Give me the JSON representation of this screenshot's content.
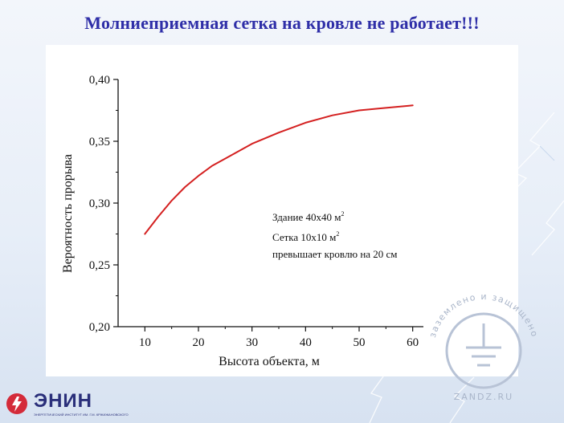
{
  "slide": {
    "title": "Молниеприемная сетка на кровле не работает!!!"
  },
  "chart_data": {
    "type": "line",
    "xlabel": "Высота объекта,  м",
    "ylabel": "Вероятность прорыва",
    "xlim": [
      5,
      62
    ],
    "ylim": [
      0.2,
      0.4
    ],
    "x_ticks": [
      10,
      20,
      30,
      40,
      50,
      60
    ],
    "x_tick_labels": [
      "10",
      "20",
      "30",
      "40",
      "50",
      "60"
    ],
    "y_ticks": [
      0.2,
      0.25,
      0.3,
      0.35,
      0.4
    ],
    "y_tick_labels": [
      "0,20",
      "0,25",
      "0,30",
      "0,35",
      "0,40"
    ],
    "grid": false,
    "series": [
      {
        "color": "#d42020",
        "x": [
          10,
          12.5,
          15,
          17.5,
          20,
          22.5,
          25,
          30,
          35,
          40,
          45,
          50,
          55,
          60
        ],
        "y": [
          0.275,
          0.289,
          0.302,
          0.313,
          0.322,
          0.33,
          0.336,
          0.348,
          0.357,
          0.365,
          0.371,
          0.375,
          0.377,
          0.379
        ]
      }
    ],
    "annotation": {
      "line1": "Здание 40х40 м",
      "line1_sup": "2",
      "line2": "Сетка 10х10 м",
      "line2_sup": "2",
      "line3": "превышает кровлю на 20 см"
    }
  },
  "watermark": {
    "arc_text": "заземлено и защищено",
    "bottom_text": "ZANDZ.RU"
  },
  "logo": {
    "name": "ЭНИН",
    "subtitle": "Энергетический институт им. Г.М. Кржижановского"
  },
  "colors": {
    "title": "#2f2fa8",
    "curve": "#d42020",
    "logo": "#2a2f7a",
    "logo_mark": "#d42b3a"
  }
}
